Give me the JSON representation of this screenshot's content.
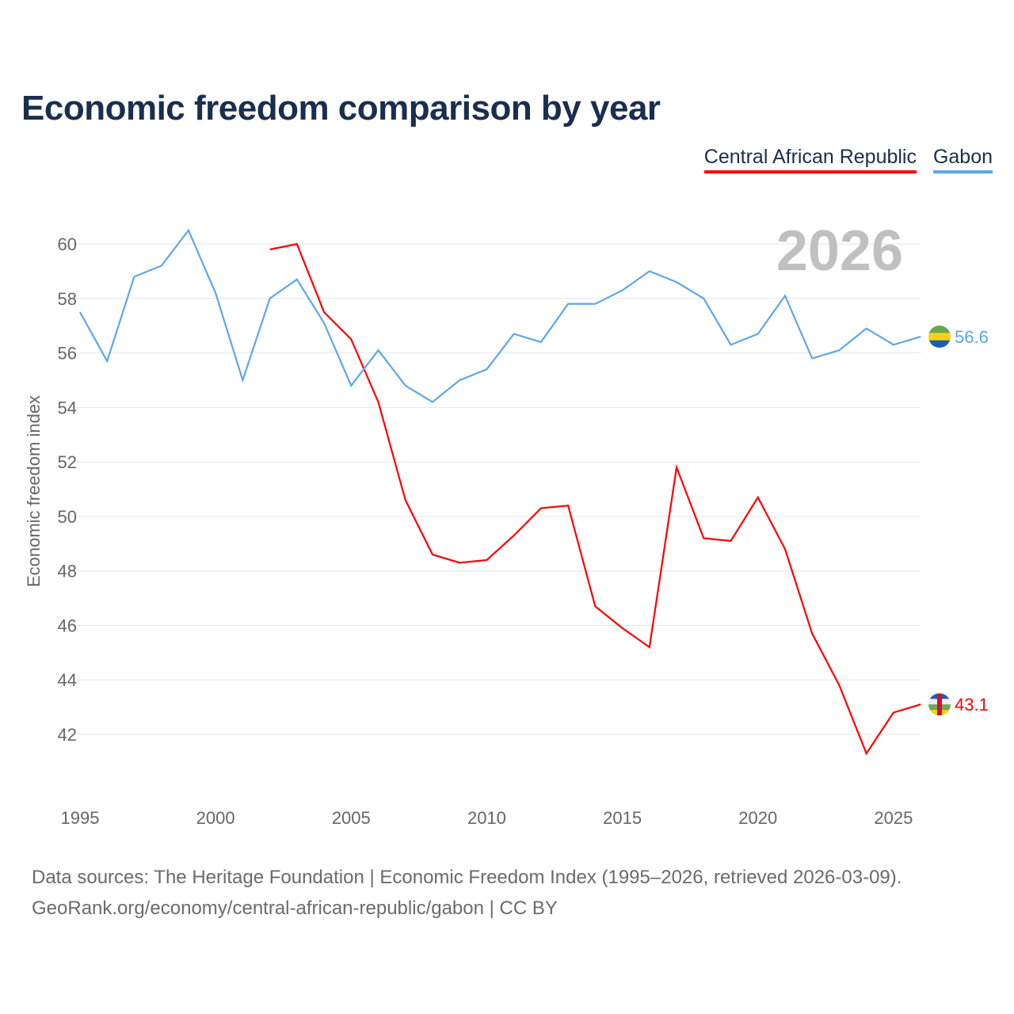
{
  "chart_data": {
    "type": "line",
    "title": "Economic freedom comparison by year",
    "ylabel": "Economic freedom index",
    "xlabel": "",
    "ylim": [
      40,
      61
    ],
    "xlim": [
      1995,
      2026
    ],
    "yticks": [
      42,
      44,
      46,
      48,
      50,
      52,
      54,
      56,
      58,
      60
    ],
    "xticks": [
      1995,
      2000,
      2005,
      2010,
      2015,
      2020,
      2025
    ],
    "year_label": "2026",
    "grid": true,
    "legend_placement": "top-right",
    "series": [
      {
        "name": "Central African Republic",
        "color": "#ff0000",
        "end_label": "43.1",
        "x": [
          2002,
          2003,
          2004,
          2005,
          2006,
          2007,
          2008,
          2009,
          2010,
          2011,
          2012,
          2013,
          2014,
          2015,
          2016,
          2017,
          2018,
          2019,
          2020,
          2021,
          2022,
          2023,
          2024,
          2025,
          2026
        ],
        "values": [
          59.8,
          60.0,
          57.5,
          56.5,
          54.2,
          50.6,
          48.6,
          48.3,
          48.4,
          49.3,
          50.3,
          50.4,
          46.7,
          45.9,
          45.2,
          51.8,
          49.2,
          49.1,
          50.7,
          48.8,
          45.7,
          43.8,
          41.3,
          42.8,
          43.1
        ]
      },
      {
        "name": "Gabon",
        "color": "#5ea6ea",
        "end_label": "56.6",
        "x": [
          1995,
          1996,
          1997,
          1998,
          1999,
          2000,
          2001,
          2002,
          2003,
          2004,
          2005,
          2006,
          2007,
          2008,
          2009,
          2010,
          2011,
          2012,
          2013,
          2014,
          2015,
          2016,
          2017,
          2018,
          2019,
          2020,
          2021,
          2022,
          2023,
          2024,
          2025,
          2026
        ],
        "values": [
          57.5,
          55.7,
          58.8,
          59.2,
          60.5,
          58.2,
          55.0,
          58.0,
          58.7,
          57.1,
          54.8,
          56.1,
          54.8,
          54.2,
          55.0,
          55.4,
          56.7,
          56.4,
          57.8,
          57.8,
          58.3,
          59.0,
          58.6,
          58.0,
          56.3,
          56.7,
          58.1,
          55.8,
          56.1,
          56.9,
          56.3,
          56.6
        ]
      }
    ]
  },
  "footer": {
    "line1": "Data sources: The Heritage Foundation | Economic Freedom Index (1995–2026, retrieved 2026-03-09).",
    "line2": "GeoRank.org/economy/central-african-republic/gabon | CC BY"
  }
}
